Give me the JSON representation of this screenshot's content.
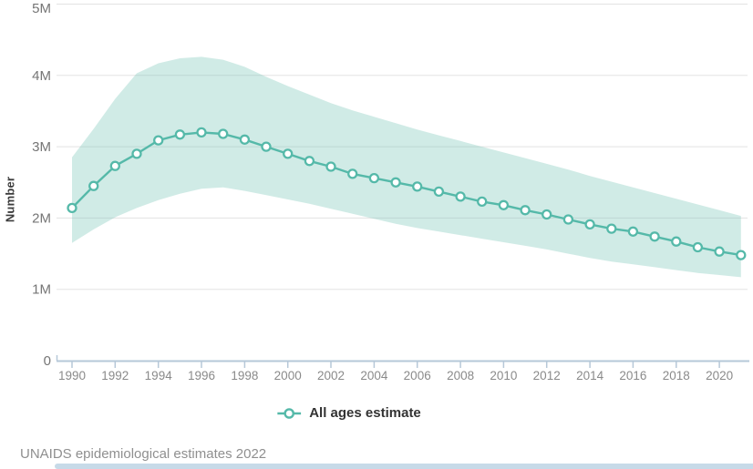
{
  "chart_data": {
    "type": "line",
    "title": "",
    "xlabel": "",
    "ylabel": "Number",
    "unit": "millions",
    "x": [
      1990,
      1991,
      1992,
      1993,
      1994,
      1995,
      1996,
      1997,
      1998,
      1999,
      2000,
      2001,
      2002,
      2003,
      2004,
      2005,
      2006,
      2007,
      2008,
      2009,
      2010,
      2011,
      2012,
      2013,
      2014,
      2015,
      2016,
      2017,
      2018,
      2019,
      2020,
      2021
    ],
    "series": [
      {
        "name": "All ages estimate",
        "values": [
          2.14,
          2.45,
          2.73,
          2.9,
          3.09,
          3.17,
          3.2,
          3.18,
          3.1,
          3.0,
          2.9,
          2.8,
          2.72,
          2.62,
          2.56,
          2.5,
          2.44,
          2.37,
          2.3,
          2.23,
          2.18,
          2.11,
          2.05,
          1.98,
          1.91,
          1.85,
          1.81,
          1.74,
          1.67,
          1.59,
          1.53,
          1.48
        ],
        "upper_bound": [
          2.85,
          3.25,
          3.67,
          4.03,
          4.17,
          4.24,
          4.26,
          4.22,
          4.12,
          3.98,
          3.85,
          3.73,
          3.61,
          3.51,
          3.42,
          3.33,
          3.24,
          3.16,
          3.08,
          3.0,
          2.92,
          2.84,
          2.76,
          2.68,
          2.59,
          2.51,
          2.43,
          2.35,
          2.27,
          2.19,
          2.11,
          2.03
        ],
        "lower_bound": [
          1.65,
          1.84,
          2.01,
          2.14,
          2.25,
          2.34,
          2.41,
          2.43,
          2.38,
          2.32,
          2.26,
          2.2,
          2.13,
          2.06,
          1.99,
          1.92,
          1.86,
          1.81,
          1.76,
          1.71,
          1.66,
          1.61,
          1.56,
          1.5,
          1.44,
          1.39,
          1.35,
          1.31,
          1.27,
          1.23,
          1.2,
          1.17
        ]
      }
    ],
    "ylim_millions": [
      0,
      5
    ],
    "y_ticks": [
      {
        "value": 0,
        "label": "0"
      },
      {
        "value": 1,
        "label": "1M"
      },
      {
        "value": 2,
        "label": "2M"
      },
      {
        "value": 3,
        "label": "3M"
      },
      {
        "value": 4,
        "label": "4M"
      },
      {
        "value": 5,
        "label": "5M"
      }
    ],
    "x_tick_labels": [
      "1990",
      "1992",
      "1994",
      "1996",
      "1998",
      "2000",
      "2002",
      "2004",
      "2006",
      "2008",
      "2010",
      "2012",
      "2014",
      "2016",
      "2018",
      "2020"
    ],
    "grid": "horizontal",
    "legend_position": "bottom-center",
    "confidence_band": true
  },
  "legend": {
    "marker": "open-circle-on-line-icon",
    "label": "All ages estimate"
  },
  "source_note": "UNAIDS epidemiological estimates 2022",
  "colors": {
    "line": "#55b9a9",
    "marker_fill": "#ffffff",
    "band_fill": "rgba(118,197,181,0.34)",
    "grid": "#e3e3e3",
    "axis": "#b6c8d8",
    "y_tick_text": "#757575",
    "x_tick_text": "#8a8a8a",
    "axis_title_text": "#3c3c3c",
    "legend_text": "#333333",
    "source_text": "#8f8f8f",
    "scrollbar": "#c7dae8"
  }
}
